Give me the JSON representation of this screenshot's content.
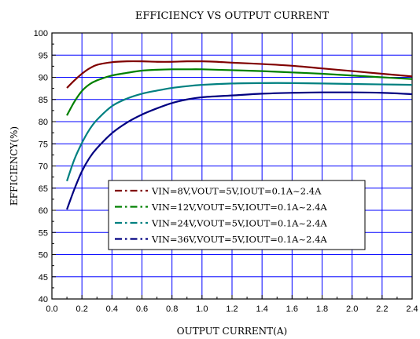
{
  "chart_data": {
    "type": "line",
    "title": "EFFICIENCY VS OUTPUT CURRENT",
    "xlabel": "OUTPUT CURRENT(A)",
    "ylabel": "EFFICIENCY(%)",
    "xlim": [
      0.0,
      2.4
    ],
    "ylim": [
      40,
      100
    ],
    "x_ticks": [
      0.0,
      0.2,
      0.4,
      0.6,
      0.8,
      1.0,
      1.2,
      1.4,
      1.6,
      1.8,
      2.0,
      2.2,
      2.4
    ],
    "x_tick_labels": [
      "0.0",
      "0.2",
      "0.4",
      "0.6",
      "0.8",
      "1.0",
      "1.2",
      "1.4",
      "1.6",
      "1.8",
      "2.0",
      "2.2",
      "2.4"
    ],
    "y_ticks": [
      40,
      45,
      50,
      55,
      60,
      65,
      70,
      75,
      80,
      85,
      90,
      95,
      100
    ],
    "y_tick_labels": [
      "40",
      "45",
      "50",
      "55",
      "60",
      "65",
      "70",
      "75",
      "80",
      "85",
      "90",
      "95",
      "100"
    ],
    "grid": true,
    "grid_color": "#0000ff",
    "legend_position": "center-left",
    "series": [
      {
        "name": "VIN=8V,VOUT=5V,IOUT=0.1A~2.4A",
        "color": "#800000",
        "x": [
          0.1,
          0.15,
          0.2,
          0.25,
          0.3,
          0.4,
          0.5,
          0.6,
          0.7,
          0.8,
          0.9,
          1.0,
          1.1,
          1.2,
          1.4,
          1.6,
          1.8,
          2.0,
          2.2,
          2.4
        ],
        "y": [
          87.6,
          89.3,
          90.8,
          92.0,
          92.8,
          93.4,
          93.6,
          93.6,
          93.5,
          93.5,
          93.6,
          93.6,
          93.5,
          93.3,
          93.0,
          92.6,
          92.0,
          91.4,
          90.8,
          90.2
        ]
      },
      {
        "name": "VIN=12V,VOUT=5V,IOUT=0.1A~2.4A",
        "color": "#008000",
        "x": [
          0.1,
          0.15,
          0.2,
          0.25,
          0.3,
          0.4,
          0.5,
          0.6,
          0.7,
          0.8,
          0.9,
          1.0,
          1.2,
          1.4,
          1.6,
          1.8,
          2.0,
          2.2,
          2.4
        ],
        "y": [
          81.4,
          84.5,
          86.9,
          88.4,
          89.3,
          90.4,
          91.0,
          91.5,
          91.7,
          91.8,
          91.8,
          91.8,
          91.6,
          91.4,
          91.1,
          90.8,
          90.4,
          90.0,
          89.6
        ]
      },
      {
        "name": "VIN=24V,VOUT=5V,IOUT=0.1A~2.4A",
        "color": "#008080",
        "x": [
          0.1,
          0.15,
          0.2,
          0.25,
          0.3,
          0.4,
          0.5,
          0.6,
          0.7,
          0.8,
          0.9,
          1.0,
          1.2,
          1.4,
          1.6,
          1.8,
          2.0,
          2.2,
          2.4
        ],
        "y": [
          66.6,
          71.5,
          75.2,
          78.2,
          80.4,
          83.5,
          85.2,
          86.3,
          87.0,
          87.6,
          88.0,
          88.3,
          88.6,
          88.7,
          88.7,
          88.6,
          88.5,
          88.4,
          88.3
        ]
      },
      {
        "name": "VIN=36V,VOUT=5V,IOUT=0.1A~2.4A",
        "color": "#000080",
        "x": [
          0.1,
          0.15,
          0.2,
          0.25,
          0.3,
          0.4,
          0.5,
          0.6,
          0.7,
          0.8,
          0.9,
          1.0,
          1.2,
          1.4,
          1.6,
          1.8,
          2.0,
          2.2,
          2.4
        ],
        "y": [
          60.2,
          64.8,
          68.8,
          71.8,
          74.0,
          77.4,
          79.8,
          81.6,
          83.0,
          84.2,
          85.0,
          85.5,
          85.9,
          86.3,
          86.5,
          86.6,
          86.6,
          86.5,
          86.2
        ]
      }
    ]
  }
}
